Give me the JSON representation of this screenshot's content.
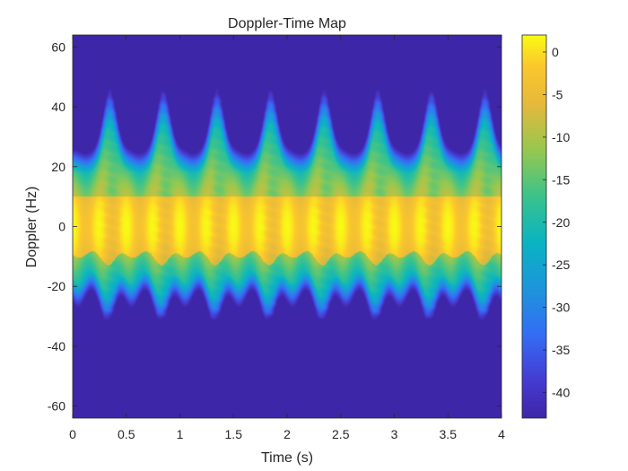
{
  "chart_data": {
    "type": "heatmap",
    "title": "Doppler-Time Map",
    "xlabel": "Time (s)",
    "ylabel": "Doppler (Hz)",
    "xlim": [
      0,
      4
    ],
    "ylim": [
      -64,
      64
    ],
    "xticks": [
      0,
      0.5,
      1,
      1.5,
      2,
      2.5,
      3,
      3.5,
      4
    ],
    "xtick_labels": [
      "0",
      "0.5",
      "1",
      "1.5",
      "2",
      "2.5",
      "3",
      "3.5",
      "4"
    ],
    "yticks": [
      -60,
      -40,
      -20,
      0,
      20,
      40,
      60
    ],
    "ytick_labels": [
      "-60",
      "-40",
      "-20",
      "0",
      "20",
      "40",
      "60"
    ],
    "colorbar": {
      "range": [
        -43,
        2
      ],
      "ticks": [
        0,
        -5,
        -10,
        -15,
        -20,
        -25,
        -30,
        -35,
        -40
      ],
      "tick_labels": [
        "0",
        "-5",
        "-10",
        "-15",
        "-20",
        "-25",
        "-30",
        "-35",
        "-40"
      ],
      "colormap": "parula"
    },
    "pattern": {
      "periodic_bursts": 8,
      "burst_peak_times_s": [
        0.35,
        0.85,
        1.35,
        1.85,
        2.35,
        2.85,
        3.35,
        3.85
      ],
      "burst_peak_doppler_hz": 34,
      "core_band_hz": [
        -10,
        10
      ],
      "outer_band_hz": [
        -22,
        20
      ],
      "floor_level": -43,
      "peak_level": 2
    }
  }
}
